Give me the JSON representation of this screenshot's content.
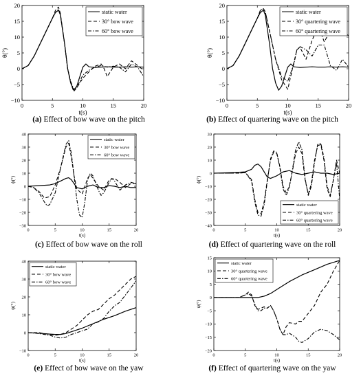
{
  "captions": [
    {
      "tag": "(a)",
      "text": "Effect of bow wave on the pitch"
    },
    {
      "tag": "(b)",
      "text": "Effect of quartering wave on the pitch"
    },
    {
      "tag": "(c)",
      "text": "Effect of bow wave on the roll"
    },
    {
      "tag": "(d)",
      "text": "Effect of quartering wave on the roll"
    },
    {
      "tag": "(e)",
      "text": "Effect of bow wave on the yaw"
    },
    {
      "tag": "(f)",
      "text": "Effect of quartering wave on the yaw"
    }
  ],
  "chart_data": [
    {
      "type": "line",
      "xlabel": "t(s)",
      "ylabel": "θ(°)",
      "xlim": [
        0,
        20
      ],
      "ylim": [
        -10,
        20
      ],
      "xticks": [
        0,
        5,
        10,
        15,
        20
      ],
      "yticks": [
        -10,
        -5,
        0,
        5,
        10,
        15,
        20
      ],
      "legend": "top-right",
      "series": [
        {
          "name": "static water",
          "style": "solid",
          "x": [
            0,
            1,
            2,
            3,
            4,
            5,
            5.5,
            6,
            6.3,
            7,
            7.5,
            8,
            8.5,
            9,
            10,
            10.5,
            11,
            12,
            13,
            14,
            15,
            16,
            17,
            18,
            19,
            20
          ],
          "y": [
            0,
            1,
            4,
            8,
            12,
            16,
            17.8,
            18.5,
            17,
            8,
            0,
            -4.5,
            -6.8,
            -5.5,
            0.5,
            1.5,
            0.6,
            0.4,
            0.5,
            0.6,
            0.5,
            0.5,
            0.6,
            0.5,
            0.6,
            0.5
          ]
        },
        {
          "name": "30° bow wave",
          "style": "dashed",
          "x": [
            0,
            1,
            2,
            3,
            4,
            5,
            5.5,
            6,
            6.3,
            7,
            7.5,
            8,
            8.5,
            9,
            10,
            11,
            12,
            13,
            13.5,
            14,
            15,
            16,
            17,
            18,
            19,
            20
          ],
          "y": [
            0,
            1,
            4,
            8,
            12,
            16,
            18.5,
            19.5,
            17.5,
            8,
            0,
            -4.5,
            -7.2,
            -6,
            -3,
            -1,
            0.8,
            1.5,
            0,
            -2.5,
            0.5,
            1.5,
            0,
            2.5,
            1,
            -0.5
          ]
        },
        {
          "name": "60° bow wave",
          "style": "dashdot",
          "x": [
            0,
            1,
            2,
            3,
            4,
            5,
            5.5,
            6,
            6.3,
            7,
            7.5,
            8,
            8.5,
            9,
            10,
            11,
            12,
            13,
            14,
            15,
            16,
            17,
            18,
            19,
            20
          ],
          "y": [
            0,
            1,
            4,
            8,
            12,
            16,
            17.8,
            18.8,
            17,
            8,
            0,
            -4,
            -6.5,
            -6,
            -2,
            -0.5,
            0.5,
            1,
            0.5,
            0.8,
            0.5,
            -1,
            1.5,
            0.5,
            -2.5
          ]
        }
      ]
    },
    {
      "type": "line",
      "xlabel": "t(s)",
      "ylabel": "θ(°)",
      "xlim": [
        0,
        20
      ],
      "ylim": [
        -10,
        20
      ],
      "xticks": [
        0,
        5,
        10,
        15,
        20
      ],
      "yticks": [
        -10,
        -5,
        0,
        5,
        10,
        15,
        20
      ],
      "legend": "top-right",
      "series": [
        {
          "name": "static water",
          "style": "solid",
          "x": [
            0,
            1,
            2,
            3,
            4,
            5,
            5.5,
            6,
            6.3,
            7,
            7.5,
            8,
            8.5,
            9,
            10,
            10.5,
            11,
            12,
            13,
            14,
            15,
            16,
            17,
            18,
            19,
            20
          ],
          "y": [
            0,
            1,
            4,
            8,
            12,
            16,
            17.8,
            18.5,
            17,
            8,
            0,
            -4.5,
            -6.8,
            -5.5,
            0.5,
            1.5,
            0.6,
            0.4,
            0.5,
            0.6,
            0.5,
            0.5,
            0.6,
            0.5,
            0.6,
            0.5
          ]
        },
        {
          "name": "30° quartering wave",
          "style": "dashed",
          "x": [
            0,
            1,
            2,
            3,
            4,
            5,
            5.5,
            6,
            6.3,
            7,
            8,
            9,
            10,
            11,
            11.5,
            12,
            13,
            14,
            15,
            16,
            17,
            18,
            19,
            20
          ],
          "y": [
            0,
            1,
            4,
            8,
            12,
            16,
            18.5,
            19,
            18,
            12,
            3,
            -3.5,
            -6.5,
            2,
            6,
            6.8,
            3,
            9,
            13.5,
            8.5,
            12,
            11,
            11.5,
            10.5
          ]
        },
        {
          "name": "60° quartering wave",
          "style": "dashdot",
          "x": [
            0,
            1,
            2,
            3,
            4,
            5,
            5.5,
            6,
            6.3,
            7,
            8,
            9,
            10,
            11,
            11.5,
            12,
            13,
            14,
            15,
            16,
            17,
            18,
            19,
            20
          ],
          "y": [
            0,
            1,
            4,
            8,
            12,
            16,
            18.5,
            19,
            18,
            12,
            3,
            -2.5,
            -4,
            1.5,
            6,
            7,
            6,
            4,
            7.5,
            7.5,
            1,
            -0.5,
            3,
            0.5
          ]
        }
      ]
    },
    {
      "type": "line",
      "xlabel": "t(s)",
      "ylabel": "ϕ(°)",
      "xlim": [
        0,
        20
      ],
      "ylim": [
        -30,
        40
      ],
      "xticks": [
        0,
        5,
        10,
        15,
        20
      ],
      "yticks": [
        -30,
        -20,
        -10,
        0,
        10,
        20,
        30,
        40
      ],
      "legend": "top-right",
      "series": [
        {
          "name": "static water",
          "style": "solid",
          "x": [
            0,
            2,
            4,
            5,
            6,
            7,
            7.5,
            8,
            8.5,
            9,
            10,
            11,
            12,
            13,
            14,
            15,
            16,
            17,
            18,
            19,
            20
          ],
          "y": [
            0,
            0.5,
            1,
            2,
            4,
            6,
            6.5,
            5,
            2,
            -1,
            -2,
            0,
            1,
            -1,
            -1,
            0.5,
            0,
            -1,
            0,
            -1,
            -1
          ]
        },
        {
          "name": "30° bow wave",
          "style": "dashed",
          "x": [
            0,
            1,
            2,
            3,
            4,
            5,
            6,
            7,
            7.5,
            8,
            8.5,
            9,
            10,
            11,
            11.5,
            12,
            13,
            14,
            15,
            16,
            17,
            18,
            19,
            20
          ],
          "y": [
            0,
            -1,
            -4,
            -9,
            -8,
            1,
            14,
            30,
            33,
            22,
            8,
            -2,
            -6,
            6,
            9,
            6,
            0,
            -3,
            5,
            6,
            3,
            -1,
            2,
            2
          ]
        },
        {
          "name": "60° bow wave",
          "style": "dashdot",
          "x": [
            0,
            1,
            2,
            3,
            3.5,
            4,
            5,
            6,
            7,
            7.5,
            8,
            8.5,
            9,
            9.5,
            10,
            10.5,
            11,
            11.5,
            12,
            13,
            13.5,
            14,
            15,
            15.5,
            16,
            17,
            18,
            19,
            20
          ],
          "y": [
            0,
            -1,
            -5,
            -12,
            -15,
            -14,
            -5,
            14,
            32,
            35,
            25,
            8,
            -10,
            -22,
            -24,
            -12,
            5,
            10,
            8,
            -3,
            -7,
            -5,
            3,
            6,
            4,
            -3,
            1,
            3,
            2
          ]
        }
      ]
    },
    {
      "type": "line",
      "xlabel": "t(s)",
      "ylabel": "ϕ(°)",
      "xlim": [
        0,
        20
      ],
      "ylim": [
        -40,
        30
      ],
      "xticks": [
        0,
        5,
        10,
        15,
        20
      ],
      "yticks": [
        -40,
        -30,
        -20,
        -10,
        0,
        10,
        20,
        30
      ],
      "legend": "bottom-right",
      "series": [
        {
          "name": "static water",
          "style": "solid",
          "x": [
            0,
            3,
            5,
            6,
            6.5,
            7,
            7.5,
            8,
            8.5,
            9,
            10,
            11,
            12,
            13,
            14,
            15,
            16,
            17,
            18,
            19,
            20
          ],
          "y": [
            0,
            0.5,
            1,
            3,
            6,
            7,
            5,
            1,
            -3,
            -4,
            -2,
            1,
            2,
            0,
            -1,
            0,
            1,
            0,
            0,
            -1,
            0
          ]
        },
        {
          "name": "30° quartering wave",
          "style": "dashed",
          "x": [
            0,
            3,
            4,
            5,
            6,
            6.5,
            7,
            7.5,
            8,
            8.5,
            9,
            9.5,
            10,
            10.5,
            11,
            11.5,
            12,
            12.5,
            13,
            13.5,
            14,
            14.5,
            15,
            15.5,
            16,
            16.5,
            17,
            17.5,
            18,
            18.5,
            19,
            19.5,
            20
          ],
          "y": [
            0,
            0,
            0,
            0.5,
            -5,
            -20,
            -30,
            -31,
            -22,
            -5,
            10,
            16,
            15,
            5,
            -10,
            -15,
            -10,
            2,
            15,
            20,
            15,
            -5,
            -16,
            -8,
            10,
            21,
            22,
            10,
            -12,
            -18,
            -5,
            10,
            0
          ]
        },
        {
          "name": "60° quartering wave",
          "style": "dashdot",
          "x": [
            0,
            3,
            4,
            5,
            6,
            6.5,
            7,
            7.5,
            8,
            8.5,
            9,
            9.5,
            10,
            10.5,
            11,
            11.5,
            12,
            12.5,
            13,
            13.5,
            14,
            14.5,
            15,
            15.5,
            16,
            16.5,
            17,
            17.5,
            18,
            18.5,
            19,
            19.5,
            20
          ],
          "y": [
            0,
            0,
            0,
            0.5,
            -6,
            -22,
            -32,
            -33,
            -24,
            -6,
            11,
            17,
            16,
            4,
            -12,
            -17,
            -11,
            3,
            18,
            24,
            18,
            -4,
            -17,
            -10,
            8,
            22,
            23,
            12,
            -10,
            -17,
            -5,
            8,
            -20
          ]
        }
      ]
    },
    {
      "type": "line",
      "xlabel": "t(s)",
      "ylabel": "ψ(°)",
      "xlim": [
        0,
        20
      ],
      "ylim": [
        -10,
        40
      ],
      "xticks": [
        0,
        5,
        10,
        15,
        20
      ],
      "yticks": [
        -10,
        0,
        10,
        20,
        30,
        40
      ],
      "legend": "top-left",
      "series": [
        {
          "name": "static water",
          "style": "solid",
          "x": [
            0,
            2,
            4,
            5,
            6,
            7,
            8,
            9,
            10,
            12,
            14,
            16,
            18,
            20
          ],
          "y": [
            0,
            -0.3,
            -0.8,
            -1,
            -1,
            -0.5,
            0.5,
            1.5,
            2.5,
            5,
            7.5,
            9.5,
            12,
            14
          ]
        },
        {
          "name": "30° bow wave",
          "style": "dashed",
          "x": [
            0,
            2,
            4,
            5,
            6,
            7,
            8,
            9,
            10,
            11,
            12,
            13,
            14,
            15,
            16,
            17,
            18,
            19,
            20
          ],
          "y": [
            0,
            0,
            -1,
            -1.5,
            -1,
            0,
            2,
            4,
            7,
            10,
            12,
            13,
            16,
            19,
            21,
            24,
            27,
            30,
            31.5
          ]
        },
        {
          "name": "60° bow wave",
          "style": "dashdot",
          "x": [
            0,
            2,
            4,
            5,
            6,
            7,
            8,
            9,
            10,
            11,
            12,
            13,
            14,
            15,
            16,
            17,
            18,
            19,
            20
          ],
          "y": [
            0,
            -0.5,
            -1.5,
            -2.5,
            -3,
            -2.5,
            -1,
            0,
            1,
            2,
            5,
            6,
            8,
            12,
            15,
            17,
            21,
            25,
            29
          ]
        }
      ]
    },
    {
      "type": "line",
      "xlabel": "t(s)",
      "ylabel": "ψ(°)",
      "xlim": [
        0,
        20
      ],
      "ylim": [
        -20,
        15
      ],
      "xticks": [
        0,
        5,
        10,
        15,
        20
      ],
      "yticks": [
        -20,
        -15,
        -10,
        -5,
        0,
        5,
        10,
        15
      ],
      "legend": "top-left",
      "series": [
        {
          "name": "static water",
          "style": "solid",
          "x": [
            0,
            3,
            4,
            5,
            6,
            7,
            8,
            9,
            10,
            11,
            12,
            14,
            16,
            18,
            20
          ],
          "y": [
            0,
            0,
            0,
            0,
            0,
            0,
            0.5,
            1.5,
            3,
            4.5,
            6,
            8.5,
            10.5,
            12.5,
            14
          ]
        },
        {
          "name": "30° quartering wave",
          "style": "dashed",
          "x": [
            0,
            3,
            4,
            5,
            5.5,
            6,
            6.5,
            7,
            7.5,
            8,
            8.5,
            9,
            9.5,
            10,
            10.5,
            11,
            11.5,
            12,
            13,
            13.5,
            14,
            15,
            16,
            17,
            18,
            19,
            20
          ],
          "y": [
            0,
            0,
            0,
            1,
            2,
            1,
            -3,
            -4.5,
            -4,
            -3.5,
            -4,
            -3,
            -5,
            -8,
            -12,
            -14,
            -11,
            -9.5,
            -10,
            -9,
            -9,
            -6,
            -3,
            2,
            5,
            10,
            14
          ]
        },
        {
          "name": "60° quartering wave",
          "style": "dashdot",
          "x": [
            0,
            3,
            4,
            5,
            5.5,
            6,
            6.5,
            7,
            7.5,
            8,
            8.5,
            9,
            9.5,
            10,
            10.5,
            11,
            11.5,
            12,
            13,
            13.5,
            14,
            15,
            16,
            17,
            18,
            19,
            20
          ],
          "y": [
            0,
            0,
            0,
            1,
            1.5,
            0.5,
            -2.5,
            -5,
            -5,
            -4,
            -4,
            -3,
            -5,
            -8,
            -12,
            -14,
            -14,
            -13.5,
            -15,
            -16.5,
            -17,
            -15.5,
            -13,
            -12,
            -12.5,
            -14,
            -16
          ]
        }
      ]
    }
  ]
}
